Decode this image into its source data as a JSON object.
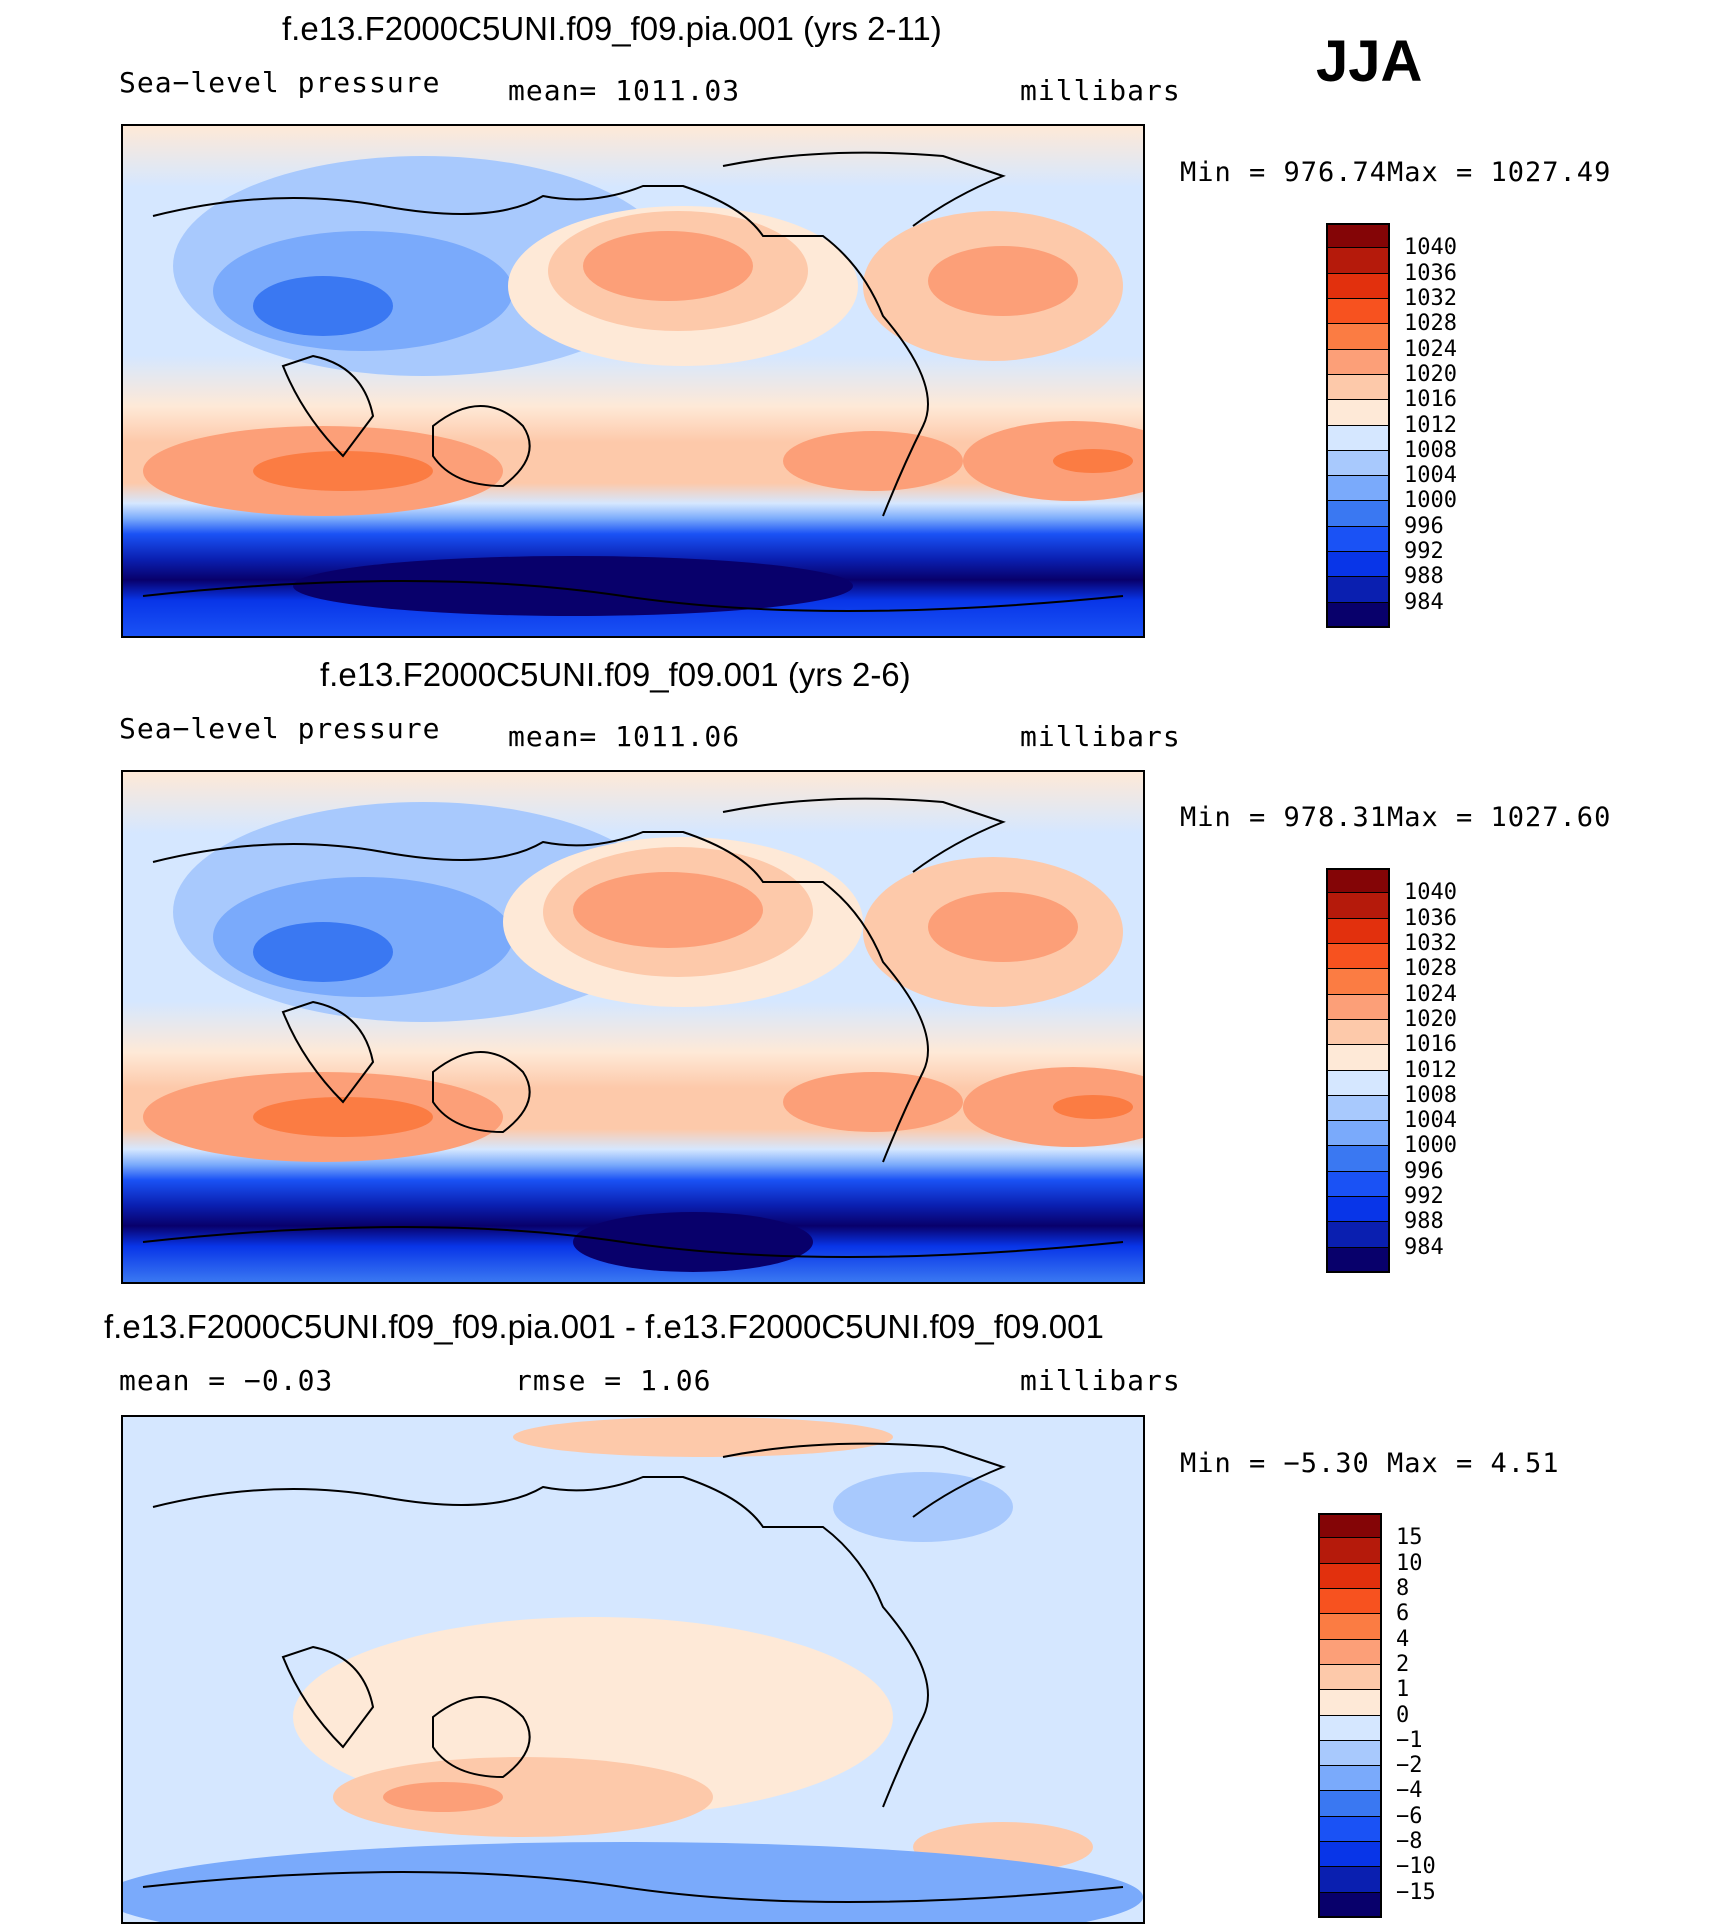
{
  "season": "JJA",
  "colors": {
    "abs_scale": [
      "#08006b",
      "#0a1fb0",
      "#0835e8",
      "#1a52f5",
      "#3a78f2",
      "#7aaafb",
      "#a8c9fd",
      "#d5e7ff",
      "#fee9d7",
      "#fdc9aa",
      "#fc9f78",
      "#fb7c43",
      "#f7521f",
      "#e2300d",
      "#b51a0b",
      "#840506"
    ],
    "diff_scale": [
      "#08006b",
      "#0a1fb0",
      "#0835e8",
      "#1a52f5",
      "#3a78f2",
      "#7aaafb",
      "#a8c9fd",
      "#d5e7ff",
      "#fee9d7",
      "#fdc9aa",
      "#fc9f78",
      "#fb7c43",
      "#f7521f",
      "#e2300d",
      "#b51a0b",
      "#840506"
    ]
  },
  "chart_data": [
    {
      "type": "heatmap",
      "title": "f.e13.F2000C5UNI.f09_f09.pia.001 (yrs 2-11)",
      "left_label": "Sea−level  pressure",
      "center_label": "mean=  1011.03",
      "right_label": "millibars",
      "min_label": "Min  =  976.74",
      "max_label": "Max  =  1027.49",
      "min": 976.74,
      "max": 1027.49,
      "mean": 1011.03,
      "units": "millibars",
      "colorbar_labels": [
        "1040",
        "1036",
        "1032",
        "1028",
        "1024",
        "1020",
        "1016",
        "1012",
        "1008",
        "1004",
        "1000",
        "996",
        "992",
        "988",
        "984"
      ]
    },
    {
      "type": "heatmap",
      "title": "f.e13.F2000C5UNI.f09_f09.001 (yrs 2-6)",
      "left_label": "Sea−level  pressure",
      "center_label": "mean=  1011.06",
      "right_label": "millibars",
      "min_label": "Min  =  978.31",
      "max_label": "Max  =  1027.60",
      "min": 978.31,
      "max": 1027.6,
      "mean": 1011.06,
      "units": "millibars",
      "colorbar_labels": [
        "1040",
        "1036",
        "1032",
        "1028",
        "1024",
        "1020",
        "1016",
        "1012",
        "1008",
        "1004",
        "1000",
        "996",
        "992",
        "988",
        "984"
      ]
    },
    {
      "type": "heatmap",
      "title": "f.e13.F2000C5UNI.f09_f09.pia.001 - f.e13.F2000C5UNI.f09_f09.001",
      "left_label": "mean  =    −0.03",
      "center_label": "rmse  =      1.06",
      "right_label": "millibars",
      "min_label": "Min  =    −5.30",
      "max_label": "Max  =      4.51",
      "min": -5.3,
      "max": 4.51,
      "mean": -0.03,
      "rmse": 1.06,
      "units": "millibars",
      "colorbar_labels": [
        "15",
        "10",
        "8",
        "6",
        "4",
        "2",
        "1",
        "0",
        "−1",
        "−2",
        "−4",
        "−6",
        "−8",
        "−10",
        "−15"
      ]
    }
  ]
}
